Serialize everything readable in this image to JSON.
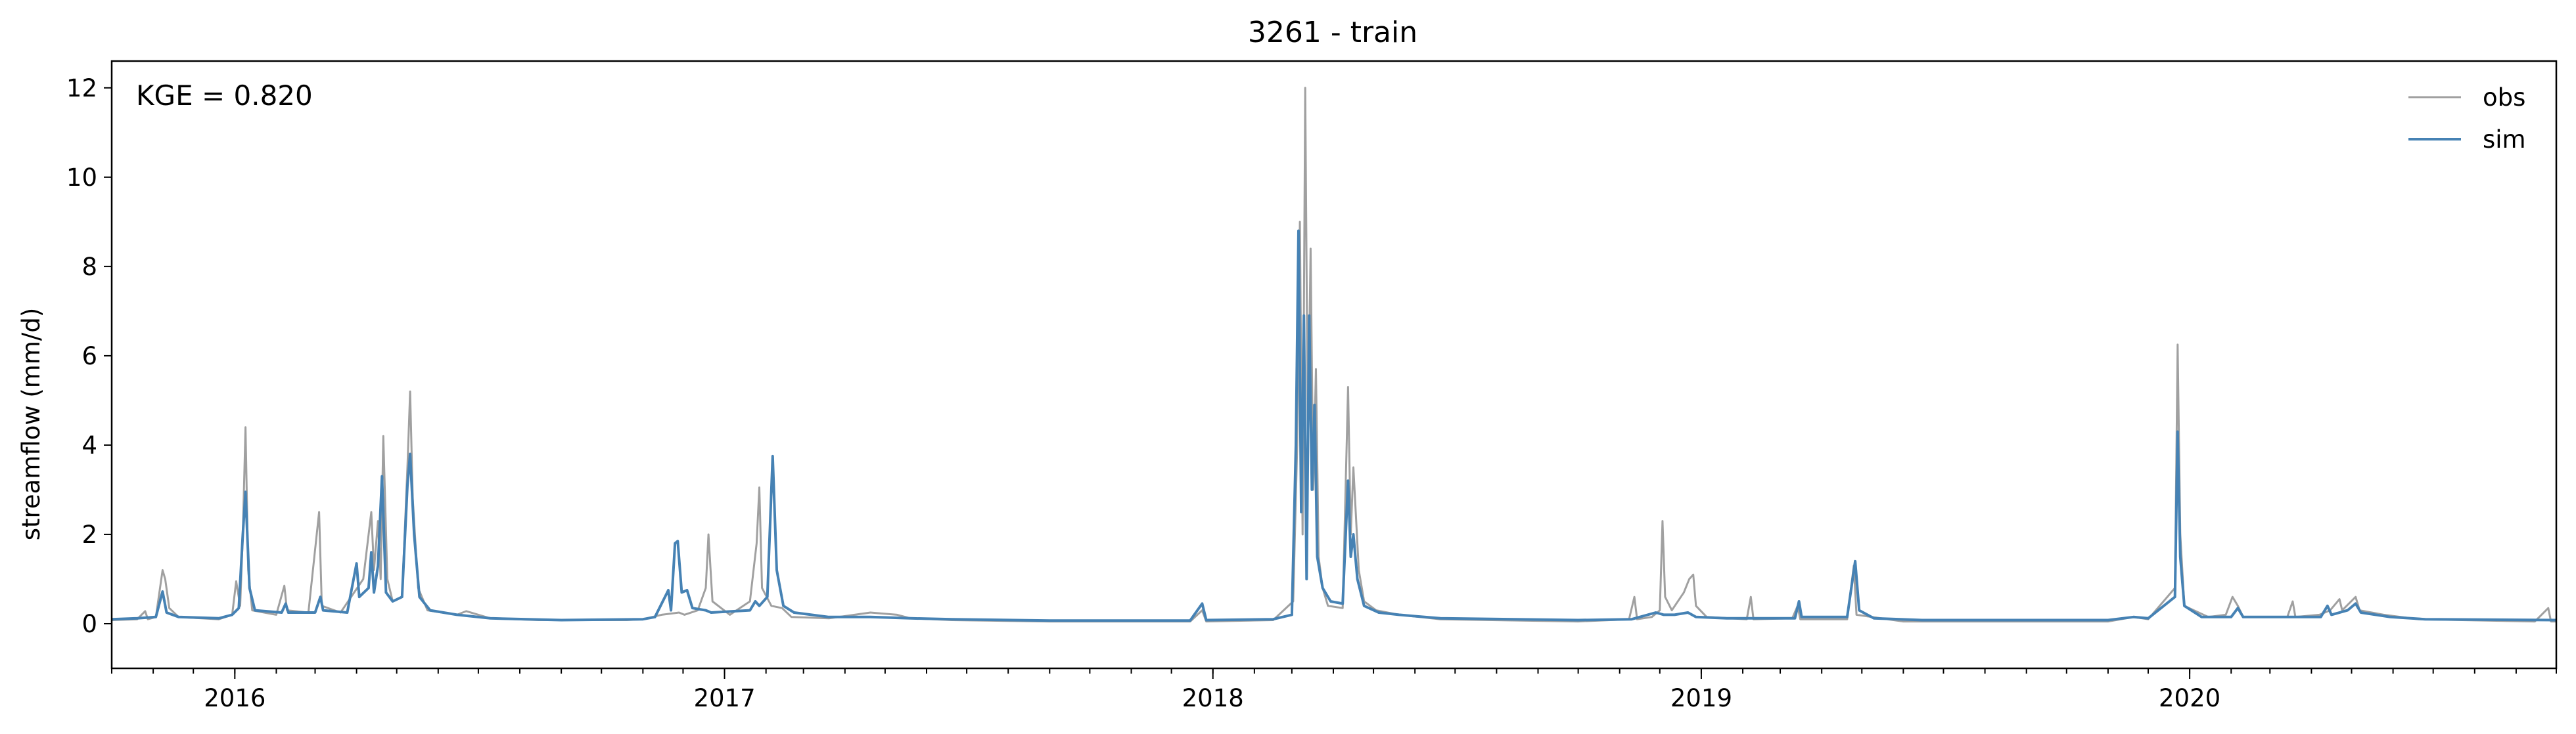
{
  "chart_data": {
    "type": "line",
    "title": "3261 - train",
    "ylabel": "streamflow (mm/d)",
    "xlabel": "",
    "annotation": "KGE = 0.820",
    "ylim": [
      -1,
      12.6
    ],
    "xlim": [
      "2015-10-01",
      "2020-10-01"
    ],
    "yticks": [
      0,
      2,
      4,
      6,
      8,
      10,
      12
    ],
    "xticks": [
      "2016-01-01",
      "2017-01-01",
      "2018-01-01",
      "2019-01-01",
      "2020-01-01"
    ],
    "xtick_labels": [
      "2016",
      "2017",
      "2018",
      "2019",
      "2020"
    ],
    "legend": {
      "placement": "top-right",
      "frame": false
    },
    "grid": false,
    "series": [
      {
        "name": "obs",
        "color": "#a0a0a0",
        "points": [
          [
            "2015-10-01",
            0.08
          ],
          [
            "2015-10-20",
            0.1
          ],
          [
            "2015-10-26",
            0.28
          ],
          [
            "2015-10-28",
            0.1
          ],
          [
            "2015-11-03",
            0.15
          ],
          [
            "2015-11-08",
            1.2
          ],
          [
            "2015-11-10",
            1.0
          ],
          [
            "2015-11-13",
            0.35
          ],
          [
            "2015-11-20",
            0.15
          ],
          [
            "2015-12-20",
            0.1
          ],
          [
            "2015-12-30",
            0.2
          ],
          [
            "2016-01-02",
            0.95
          ],
          [
            "2016-01-05",
            0.4
          ],
          [
            "2016-01-07",
            2.0
          ],
          [
            "2016-01-09",
            4.4
          ],
          [
            "2016-01-11",
            1.2
          ],
          [
            "2016-01-14",
            0.3
          ],
          [
            "2016-02-01",
            0.2
          ],
          [
            "2016-02-07",
            0.85
          ],
          [
            "2016-02-09",
            0.3
          ],
          [
            "2016-02-25",
            0.25
          ],
          [
            "2016-03-04",
            2.5
          ],
          [
            "2016-03-06",
            0.4
          ],
          [
            "2016-03-20",
            0.25
          ],
          [
            "2016-04-06",
            1.0
          ],
          [
            "2016-04-12",
            2.5
          ],
          [
            "2016-04-14",
            1.2
          ],
          [
            "2016-04-17",
            2.3
          ],
          [
            "2016-04-19",
            1.0
          ],
          [
            "2016-04-21",
            4.2
          ],
          [
            "2016-04-24",
            1.0
          ],
          [
            "2016-04-28",
            0.5
          ],
          [
            "2016-05-05",
            0.6
          ],
          [
            "2016-05-09",
            3.5
          ],
          [
            "2016-05-11",
            5.2
          ],
          [
            "2016-05-13",
            2.8
          ],
          [
            "2016-05-17",
            0.8
          ],
          [
            "2016-05-24",
            0.3
          ],
          [
            "2016-06-15",
            0.2
          ],
          [
            "2016-06-22",
            0.28
          ],
          [
            "2016-07-10",
            0.12
          ],
          [
            "2016-08-15",
            0.08
          ],
          [
            "2016-10-20",
            0.08
          ],
          [
            "2016-11-01",
            0.1
          ],
          [
            "2016-11-15",
            0.2
          ],
          [
            "2016-11-28",
            0.25
          ],
          [
            "2016-12-02",
            0.2
          ],
          [
            "2016-12-12",
            0.3
          ],
          [
            "2016-12-18",
            0.8
          ],
          [
            "2016-12-20",
            2.0
          ],
          [
            "2016-12-23",
            0.5
          ],
          [
            "2017-01-05",
            0.2
          ],
          [
            "2017-01-20",
            0.5
          ],
          [
            "2017-01-25",
            1.8
          ],
          [
            "2017-01-27",
            3.05
          ],
          [
            "2017-01-29",
            0.8
          ],
          [
            "2017-02-05",
            0.4
          ],
          [
            "2017-02-13",
            0.35
          ],
          [
            "2017-02-20",
            0.15
          ],
          [
            "2017-03-20",
            0.12
          ],
          [
            "2017-04-20",
            0.25
          ],
          [
            "2017-05-10",
            0.2
          ],
          [
            "2017-05-20",
            0.12
          ],
          [
            "2017-06-20",
            0.08
          ],
          [
            "2017-09-01",
            0.05
          ],
          [
            "2017-12-15",
            0.05
          ],
          [
            "2017-12-24",
            0.3
          ],
          [
            "2017-12-27",
            0.05
          ],
          [
            "2018-02-15",
            0.08
          ],
          [
            "2018-03-02",
            0.5
          ],
          [
            "2018-03-05",
            4.0
          ],
          [
            "2018-03-07",
            9.0
          ],
          [
            "2018-03-09",
            2.0
          ],
          [
            "2018-03-11",
            12.0
          ],
          [
            "2018-03-13",
            4.0
          ],
          [
            "2018-03-15",
            8.4
          ],
          [
            "2018-03-17",
            3.0
          ],
          [
            "2018-03-19",
            5.7
          ],
          [
            "2018-03-21",
            1.5
          ],
          [
            "2018-03-24",
            0.8
          ],
          [
            "2018-03-28",
            0.4
          ],
          [
            "2018-04-08",
            0.35
          ],
          [
            "2018-04-12",
            5.3
          ],
          [
            "2018-04-14",
            2.0
          ],
          [
            "2018-04-16",
            3.5
          ],
          [
            "2018-04-20",
            1.2
          ],
          [
            "2018-04-24",
            0.5
          ],
          [
            "2018-05-03",
            0.3
          ],
          [
            "2018-05-20",
            0.2
          ],
          [
            "2018-06-20",
            0.1
          ],
          [
            "2018-10-01",
            0.05
          ],
          [
            "2018-11-08",
            0.1
          ],
          [
            "2018-11-12",
            0.6
          ],
          [
            "2018-11-14",
            0.1
          ],
          [
            "2018-11-25",
            0.15
          ],
          [
            "2018-12-01",
            0.3
          ],
          [
            "2018-12-03",
            2.3
          ],
          [
            "2018-12-05",
            0.6
          ],
          [
            "2018-12-10",
            0.3
          ],
          [
            "2018-12-19",
            0.7
          ],
          [
            "2018-12-23",
            1.0
          ],
          [
            "2018-12-26",
            1.1
          ],
          [
            "2018-12-28",
            0.4
          ],
          [
            "2019-01-05",
            0.15
          ],
          [
            "2019-02-04",
            0.1
          ],
          [
            "2019-02-07",
            0.6
          ],
          [
            "2019-02-09",
            0.1
          ],
          [
            "2019-03-10",
            0.12
          ],
          [
            "2019-03-14",
            0.4
          ],
          [
            "2019-03-16",
            0.1
          ],
          [
            "2019-04-20",
            0.1
          ],
          [
            "2019-04-25",
            1.3
          ],
          [
            "2019-04-27",
            0.2
          ],
          [
            "2019-06-01",
            0.05
          ],
          [
            "2019-11-01",
            0.05
          ],
          [
            "2019-11-20",
            0.15
          ],
          [
            "2019-12-01",
            0.1
          ],
          [
            "2019-12-21",
            0.8
          ],
          [
            "2019-12-23",
            6.25
          ],
          [
            "2019-12-25",
            2.0
          ],
          [
            "2019-12-28",
            0.4
          ],
          [
            "2020-01-15",
            0.15
          ],
          [
            "2020-01-28",
            0.2
          ],
          [
            "2020-02-02",
            0.6
          ],
          [
            "2020-02-06",
            0.4
          ],
          [
            "2020-02-10",
            0.15
          ],
          [
            "2020-03-14",
            0.15
          ],
          [
            "2020-03-18",
            0.5
          ],
          [
            "2020-03-20",
            0.15
          ],
          [
            "2020-04-07",
            0.2
          ],
          [
            "2020-04-15",
            0.3
          ],
          [
            "2020-04-22",
            0.55
          ],
          [
            "2020-04-24",
            0.3
          ],
          [
            "2020-05-04",
            0.6
          ],
          [
            "2020-05-07",
            0.3
          ],
          [
            "2020-05-25",
            0.2
          ],
          [
            "2020-06-20",
            0.1
          ],
          [
            "2020-09-15",
            0.05
          ],
          [
            "2020-09-25",
            0.35
          ],
          [
            "2020-09-27",
            0.05
          ],
          [
            "2020-10-01",
            0.05
          ]
        ]
      },
      {
        "name": "sim",
        "color": "#4682b4",
        "points": [
          [
            "2015-10-01",
            0.1
          ],
          [
            "2015-10-20",
            0.12
          ],
          [
            "2015-11-03",
            0.15
          ],
          [
            "2015-11-08",
            0.72
          ],
          [
            "2015-11-11",
            0.25
          ],
          [
            "2015-11-20",
            0.15
          ],
          [
            "2015-12-20",
            0.12
          ],
          [
            "2015-12-30",
            0.2
          ],
          [
            "2016-01-04",
            0.35
          ],
          [
            "2016-01-07",
            2.0
          ],
          [
            "2016-01-09",
            2.95
          ],
          [
            "2016-01-12",
            0.8
          ],
          [
            "2016-01-16",
            0.3
          ],
          [
            "2016-02-05",
            0.25
          ],
          [
            "2016-02-08",
            0.45
          ],
          [
            "2016-02-10",
            0.25
          ],
          [
            "2016-03-01",
            0.25
          ],
          [
            "2016-03-05",
            0.6
          ],
          [
            "2016-03-07",
            0.3
          ],
          [
            "2016-03-25",
            0.25
          ],
          [
            "2016-04-01",
            1.35
          ],
          [
            "2016-04-03",
            0.6
          ],
          [
            "2016-04-10",
            0.8
          ],
          [
            "2016-04-12",
            1.6
          ],
          [
            "2016-04-14",
            0.7
          ],
          [
            "2016-04-17",
            1.3
          ],
          [
            "2016-04-20",
            3.3
          ],
          [
            "2016-04-23",
            0.7
          ],
          [
            "2016-04-28",
            0.5
          ],
          [
            "2016-05-05",
            0.6
          ],
          [
            "2016-05-09",
            3.1
          ],
          [
            "2016-05-11",
            3.8
          ],
          [
            "2016-05-14",
            2.0
          ],
          [
            "2016-05-18",
            0.6
          ],
          [
            "2016-05-26",
            0.3
          ],
          [
            "2016-06-15",
            0.2
          ],
          [
            "2016-07-10",
            0.12
          ],
          [
            "2016-09-01",
            0.08
          ],
          [
            "2016-11-01",
            0.1
          ],
          [
            "2016-11-10",
            0.15
          ],
          [
            "2016-11-20",
            0.75
          ],
          [
            "2016-11-22",
            0.3
          ],
          [
            "2016-11-25",
            1.8
          ],
          [
            "2016-11-27",
            1.85
          ],
          [
            "2016-11-30",
            0.7
          ],
          [
            "2016-12-04",
            0.75
          ],
          [
            "2016-12-08",
            0.35
          ],
          [
            "2016-12-18",
            0.3
          ],
          [
            "2016-12-22",
            0.25
          ],
          [
            "2017-01-20",
            0.3
          ],
          [
            "2017-01-24",
            0.5
          ],
          [
            "2017-01-27",
            0.4
          ],
          [
            "2017-02-02",
            0.6
          ],
          [
            "2017-02-06",
            3.75
          ],
          [
            "2017-02-09",
            1.2
          ],
          [
            "2017-02-14",
            0.4
          ],
          [
            "2017-02-22",
            0.25
          ],
          [
            "2017-03-20",
            0.15
          ],
          [
            "2017-04-20",
            0.15
          ],
          [
            "2017-05-20",
            0.12
          ],
          [
            "2017-06-20",
            0.1
          ],
          [
            "2017-09-01",
            0.07
          ],
          [
            "2017-12-15",
            0.07
          ],
          [
            "2017-12-24",
            0.45
          ],
          [
            "2017-12-27",
            0.08
          ],
          [
            "2018-02-15",
            0.1
          ],
          [
            "2018-03-01",
            0.2
          ],
          [
            "2018-03-04",
            4.0
          ],
          [
            "2018-03-06",
            8.8
          ],
          [
            "2018-03-08",
            2.5
          ],
          [
            "2018-03-10",
            6.9
          ],
          [
            "2018-03-12",
            1.0
          ],
          [
            "2018-03-14",
            6.9
          ],
          [
            "2018-03-16",
            3.0
          ],
          [
            "2018-03-18",
            4.9
          ],
          [
            "2018-03-20",
            1.5
          ],
          [
            "2018-03-24",
            0.8
          ],
          [
            "2018-03-30",
            0.5
          ],
          [
            "2018-04-08",
            0.45
          ],
          [
            "2018-04-12",
            3.2
          ],
          [
            "2018-04-14",
            1.5
          ],
          [
            "2018-04-16",
            2.0
          ],
          [
            "2018-04-19",
            1.0
          ],
          [
            "2018-04-24",
            0.4
          ],
          [
            "2018-05-05",
            0.25
          ],
          [
            "2018-05-20",
            0.2
          ],
          [
            "2018-06-20",
            0.12
          ],
          [
            "2018-10-01",
            0.08
          ],
          [
            "2018-11-10",
            0.1
          ],
          [
            "2018-11-28",
            0.25
          ],
          [
            "2018-12-04",
            0.2
          ],
          [
            "2018-12-12",
            0.2
          ],
          [
            "2018-12-22",
            0.25
          ],
          [
            "2018-12-28",
            0.15
          ],
          [
            "2019-01-20",
            0.12
          ],
          [
            "2019-03-12",
            0.12
          ],
          [
            "2019-03-15",
            0.5
          ],
          [
            "2019-03-17",
            0.15
          ],
          [
            "2019-04-20",
            0.15
          ],
          [
            "2019-04-26",
            1.4
          ],
          [
            "2019-04-29",
            0.3
          ],
          [
            "2019-05-10",
            0.12
          ],
          [
            "2019-06-15",
            0.08
          ],
          [
            "2019-11-01",
            0.08
          ],
          [
            "2019-11-20",
            0.15
          ],
          [
            "2019-12-01",
            0.12
          ],
          [
            "2019-12-21",
            0.6
          ],
          [
            "2019-12-23",
            4.3
          ],
          [
            "2019-12-25",
            1.5
          ],
          [
            "2019-12-28",
            0.4
          ],
          [
            "2020-01-10",
            0.15
          ],
          [
            "2020-02-01",
            0.15
          ],
          [
            "2020-02-06",
            0.35
          ],
          [
            "2020-02-10",
            0.15
          ],
          [
            "2020-03-15",
            0.15
          ],
          [
            "2020-04-08",
            0.15
          ],
          [
            "2020-04-13",
            0.4
          ],
          [
            "2020-04-16",
            0.2
          ],
          [
            "2020-04-28",
            0.3
          ],
          [
            "2020-05-04",
            0.45
          ],
          [
            "2020-05-08",
            0.25
          ],
          [
            "2020-05-30",
            0.15
          ],
          [
            "2020-06-25",
            0.1
          ],
          [
            "2020-10-01",
            0.08
          ]
        ]
      }
    ]
  }
}
